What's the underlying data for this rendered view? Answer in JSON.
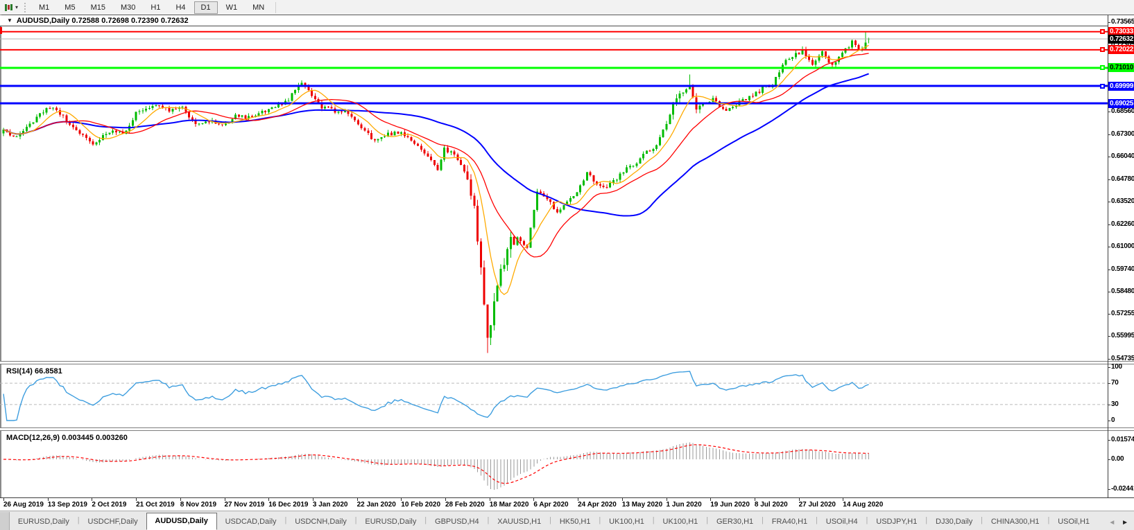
{
  "toolbar": {
    "timeframes": [
      "M1",
      "M5",
      "M15",
      "M30",
      "H1",
      "H4",
      "D1",
      "W1",
      "MN"
    ],
    "active_timeframe": "D1",
    "chart_type_icon": "candlestick-chart-icon",
    "dropdown_glyph": "▾"
  },
  "chart": {
    "title_line": "AUDUSD,Daily 0.72588 0.72698 0.72390 0.72632",
    "dropdown_glyph": "▼",
    "current_price": {
      "label": "0.72632",
      "line_color": "#B0B0B0",
      "bg": "#000000",
      "text": "#FFFFFF"
    },
    "price_axis_ticks": [
      "0.73565",
      "0.72305",
      "0.69820",
      "0.68560",
      "0.67300",
      "0.66040",
      "0.64780",
      "0.63520",
      "0.62260",
      "0.61000",
      "0.59740",
      "0.58480",
      "0.57255",
      "0.55995",
      "0.54735"
    ],
    "hlines": [
      {
        "price": 0.73033,
        "label": "0.73033",
        "color": "#FF0000",
        "text": "#FFFFFF",
        "width": 2,
        "handle": true
      },
      {
        "price": 0.72022,
        "label": "0.72022",
        "color": "#FF0000",
        "text": "#FFFFFF",
        "width": 2,
        "handle": true
      },
      {
        "price": 0.7101,
        "label": "0.71010",
        "color": "#00FF00",
        "text": "#000000",
        "width": 3,
        "handle": true
      },
      {
        "price": 0.69999,
        "label": "0.69999",
        "color": "#0000FF",
        "text": "#FFFFFF",
        "width": 3,
        "handle": true
      },
      {
        "price": 0.69025,
        "label": "0.69025",
        "color": "#0000FF",
        "text": "#FFFFFF",
        "width": 3,
        "handle": false
      }
    ],
    "colors": {
      "up": "#00BB00",
      "down": "#EE0000",
      "ma_fast": "#FFAA00",
      "ma_mid": "#FF0000",
      "ma_slow": "#0000FF",
      "rsi_line": "#3E9EDF",
      "macd_hist": "#999999",
      "macd_signal": "#FF0000",
      "level_dash": "#BBBBBB"
    }
  },
  "rsi": {
    "label": "RSI(14) 66.8581",
    "ticks": [
      {
        "v": 100,
        "label": "100"
      },
      {
        "v": 70,
        "label": "70"
      },
      {
        "v": 30,
        "label": "30"
      },
      {
        "v": 0,
        "label": "0"
      }
    ],
    "dashed_levels": [
      70,
      30
    ]
  },
  "macd": {
    "label": "MACD(12,26,9) 0.003445 0.003260",
    "ticks": [
      {
        "v": 0.01574,
        "label": "0.01574"
      },
      {
        "v": 0,
        "label": "0.00"
      },
      {
        "v": -0.02441,
        "label": "-0.02441"
      }
    ]
  },
  "dates": [
    "26 Aug 2019",
    "13 Sep 2019",
    "2 Oct 2019",
    "21 Oct 2019",
    "8 Nov 2019",
    "27 Nov 2019",
    "16 Dec 2019",
    "3 Jan 2020",
    "22 Jan 2020",
    "10 Feb 2020",
    "28 Feb 2020",
    "18 Mar 2020",
    "6 Apr 2020",
    "24 Apr 2020",
    "13 May 2020",
    "1 Jun 2020",
    "19 Jun 2020",
    "8 Jul 2020",
    "27 Jul 2020",
    "14 Aug 2020"
  ],
  "tabs": {
    "items": [
      "EURUSD,Daily",
      "USDCHF,Daily",
      "AUDUSD,Daily",
      "USDCAD,Daily",
      "USDCNH,Daily",
      "EURUSD,Daily",
      "GBPUSD,H4",
      "XAUUSD,H1",
      "HK50,H1",
      "UK100,H1",
      "UK100,H1",
      "GER30,H1",
      "FRA40,H1",
      "USOil,H4",
      "USDJPY,H1",
      "DJ30,Daily",
      "CHINA300,H1",
      "USOil,H1"
    ],
    "active_index": 2,
    "scroll_left_glyph": "◄",
    "scroll_right_glyph": "►"
  },
  "chart_data": {
    "type": "candlestick",
    "symbol": "AUDUSD",
    "timeframe": "Daily",
    "last_bar_ohlc": {
      "open": 0.72588,
      "high": 0.72698,
      "low": 0.7239,
      "close": 0.72632
    },
    "price_range_visible": [
      0.54735,
      0.73565
    ],
    "bars_total": 262,
    "anchors": [
      [
        0,
        0.6755
      ],
      [
        3,
        0.671
      ],
      [
        6,
        0.6745
      ],
      [
        10,
        0.6825
      ],
      [
        14,
        0.6885
      ],
      [
        17,
        0.685
      ],
      [
        20,
        0.6775
      ],
      [
        24,
        0.6725
      ],
      [
        27,
        0.6672
      ],
      [
        29,
        0.6705
      ],
      [
        33,
        0.676
      ],
      [
        36,
        0.6725
      ],
      [
        40,
        0.685
      ],
      [
        44,
        0.6885
      ],
      [
        47,
        0.69
      ],
      [
        50,
        0.686
      ],
      [
        54,
        0.6875
      ],
      [
        58,
        0.6795
      ],
      [
        62,
        0.6805
      ],
      [
        66,
        0.6778
      ],
      [
        70,
        0.684
      ],
      [
        74,
        0.6822
      ],
      [
        78,
        0.6852
      ],
      [
        82,
        0.6875
      ],
      [
        86,
        0.6925
      ],
      [
        90,
        0.7022
      ],
      [
        93,
        0.6945
      ],
      [
        96,
        0.688
      ],
      [
        100,
        0.6862
      ],
      [
        104,
        0.6848
      ],
      [
        108,
        0.6765
      ],
      [
        112,
        0.6692
      ],
      [
        116,
        0.6732
      ],
      [
        120,
        0.6742
      ],
      [
        124,
        0.6685
      ],
      [
        128,
        0.6605
      ],
      [
        131,
        0.6535
      ],
      [
        133,
        0.6645
      ],
      [
        136,
        0.6615
      ],
      [
        139,
        0.6525
      ],
      [
        142,
        0.6315
      ],
      [
        144,
        0.6005
      ],
      [
        146,
        0.5565
      ],
      [
        148,
        0.5785
      ],
      [
        150,
        0.5955
      ],
      [
        152,
        0.6105
      ],
      [
        155,
        0.6155
      ],
      [
        158,
        0.6095
      ],
      [
        161,
        0.6405
      ],
      [
        164,
        0.6365
      ],
      [
        167,
        0.6295
      ],
      [
        170,
        0.6355
      ],
      [
        173,
        0.6405
      ],
      [
        176,
        0.6515
      ],
      [
        179,
        0.6455
      ],
      [
        182,
        0.6435
      ],
      [
        185,
        0.6485
      ],
      [
        188,
        0.6535
      ],
      [
        191,
        0.6565
      ],
      [
        194,
        0.6635
      ],
      [
        197,
        0.6665
      ],
      [
        200,
        0.6795
      ],
      [
        203,
        0.6935
      ],
      [
        207,
        0.7005
      ],
      [
        209,
        0.6875
      ],
      [
        211,
        0.6905
      ],
      [
        214,
        0.6925
      ],
      [
        217,
        0.6865
      ],
      [
        220,
        0.6885
      ],
      [
        223,
        0.6925
      ],
      [
        226,
        0.6945
      ],
      [
        229,
        0.6985
      ],
      [
        232,
        0.7005
      ],
      [
        235,
        0.7125
      ],
      [
        238,
        0.7165
      ],
      [
        241,
        0.7195
      ],
      [
        244,
        0.7125
      ],
      [
        247,
        0.7185
      ],
      [
        250,
        0.7115
      ],
      [
        253,
        0.7175
      ],
      [
        256,
        0.7245
      ],
      [
        258,
        0.7195
      ],
      [
        260,
        0.7235
      ],
      [
        261,
        0.72632
      ]
    ],
    "overrides": {
      "90": {
        "high": 0.7032
      },
      "146": {
        "low": 0.5506
      },
      "207": {
        "high": 0.7064
      },
      "260": {
        "high": 0.7302
      },
      "261": {
        "open": 0.72588,
        "high": 0.72698,
        "low": 0.7239,
        "close": 0.72632
      }
    },
    "indicators": {
      "ma_fast": {
        "type": "sma",
        "period": 8
      },
      "ma_mid": {
        "type": "sma",
        "period": 20
      },
      "ma_slow": {
        "type": "sma",
        "period": 50
      },
      "rsi": {
        "period": 14,
        "current": "66.8581"
      },
      "macd": {
        "fast": 12,
        "slow": 26,
        "signal": 9,
        "current": [
          "0.003445",
          "0.003260"
        ]
      }
    },
    "noise_seed": 11
  }
}
